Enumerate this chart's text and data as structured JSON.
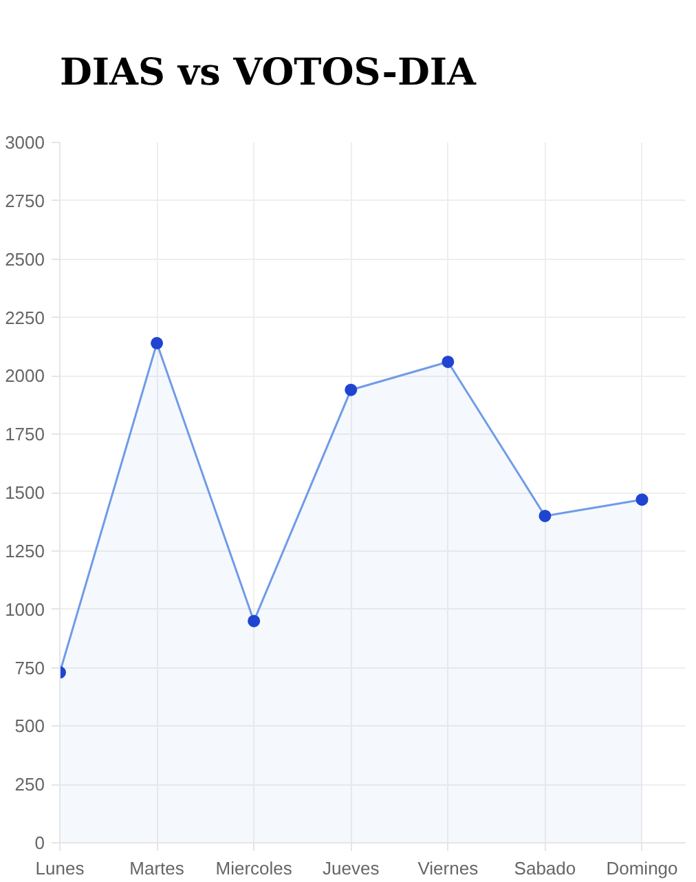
{
  "chart_data": {
    "type": "area",
    "title": "DIAS vs VOTOS-DIA",
    "categories": [
      "Lunes",
      "Martes",
      "Miercoles",
      "Jueves",
      "Viernes",
      "Sabado",
      "Domingo"
    ],
    "series": [
      {
        "color": "#6f9be8",
        "values": [
          730,
          2140,
          950,
          1940,
          2060,
          1400,
          1470
        ]
      }
    ],
    "ylim": [
      0,
      3000
    ],
    "yticks": [
      0,
      250,
      500,
      750,
      1000,
      1250,
      1500,
      1750,
      2000,
      2250,
      2500,
      2750,
      3000
    ],
    "grid": true,
    "marker": "circle",
    "line_style": "solid"
  }
}
